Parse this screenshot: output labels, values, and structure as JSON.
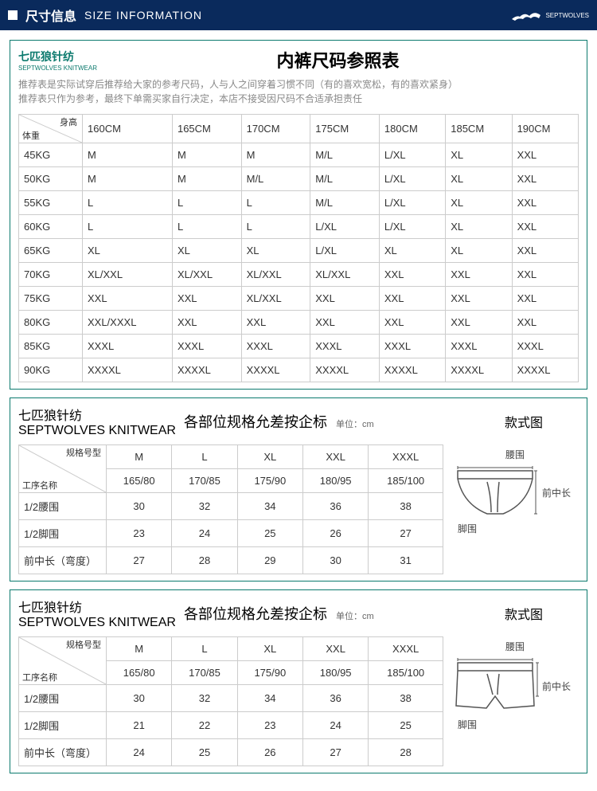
{
  "header": {
    "title_cn": "尺寸信息",
    "title_en": "SIZE  INFORMATION",
    "logo_text": "SEPTWOLVES"
  },
  "brand": {
    "cn": "七匹狼针纺",
    "en": "SEPTWOLVES KNITWEAR"
  },
  "main": {
    "title": "内裤尺码参照表",
    "desc1": "推荐表是实际试穿后推荐给大家的参考尺码，人与人之间穿着习惯不同（有的喜欢宽松，有的喜欢紧身）",
    "desc2": "推荐表只作为参考，最终下单需买家自行决定，本店不接受因尺码不合适承担责任",
    "corner_top": "身高",
    "corner_bot": "体重",
    "heights": [
      "160CM",
      "165CM",
      "170CM",
      "175CM",
      "180CM",
      "185CM",
      "190CM"
    ],
    "rows": [
      {
        "w": "45KG",
        "v": [
          "M",
          "M",
          "M",
          "M/L",
          "L/XL",
          "XL",
          "XXL"
        ]
      },
      {
        "w": "50KG",
        "v": [
          "M",
          "M",
          "M/L",
          "M/L",
          "L/XL",
          "XL",
          "XXL"
        ]
      },
      {
        "w": "55KG",
        "v": [
          "L",
          "L",
          "L",
          "M/L",
          "L/XL",
          "XL",
          "XXL"
        ]
      },
      {
        "w": "60KG",
        "v": [
          "L",
          "L",
          "L",
          "L/XL",
          "L/XL",
          "XL",
          "XXL"
        ]
      },
      {
        "w": "65KG",
        "v": [
          "XL",
          "XL",
          "XL",
          "L/XL",
          "XL",
          "XL",
          "XXL"
        ]
      },
      {
        "w": "70KG",
        "v": [
          "XL/XXL",
          "XL/XXL",
          "XL/XXL",
          "XL/XXL",
          "XXL",
          "XXL",
          "XXL"
        ]
      },
      {
        "w": "75KG",
        "v": [
          "XXL",
          "XXL",
          "XL/XXL",
          "XXL",
          "XXL",
          "XXL",
          "XXL"
        ]
      },
      {
        "w": "80KG",
        "v": [
          "XXL/XXXL",
          "XXL",
          "XXL",
          "XXL",
          "XXL",
          "XXL",
          "XXL"
        ]
      },
      {
        "w": "85KG",
        "v": [
          "XXXL",
          "XXXL",
          "XXXL",
          "XXXL",
          "XXXL",
          "XXXL",
          "XXXL"
        ]
      },
      {
        "w": "90KG",
        "v": [
          "XXXXL",
          "XXXXL",
          "XXXXL",
          "XXXXL",
          "XXXXL",
          "XXXXL",
          "XXXXL"
        ]
      }
    ]
  },
  "sub": {
    "title": "各部位规格允差按企标",
    "unit": "单位：cm",
    "style_label": "款式图",
    "corner_top": "规格号型",
    "corner_bot": "工序名称",
    "sizes": [
      "M",
      "L",
      "XL",
      "XXL",
      "XXXL"
    ],
    "size_specs": [
      "165/80",
      "170/85",
      "175/90",
      "180/95",
      "185/100"
    ],
    "diagram_waist": "腰围",
    "diagram_front": "前中长",
    "diagram_foot": "脚围"
  },
  "t1": {
    "rows": [
      {
        "n": "1/2腰围",
        "v": [
          "30",
          "32",
          "34",
          "36",
          "38"
        ]
      },
      {
        "n": "1/2脚围",
        "v": [
          "23",
          "24",
          "25",
          "26",
          "27"
        ]
      },
      {
        "n": "前中长（弯度）",
        "v": [
          "27",
          "28",
          "29",
          "30",
          "31"
        ]
      }
    ]
  },
  "t2": {
    "rows": [
      {
        "n": "1/2腰围",
        "v": [
          "30",
          "32",
          "34",
          "36",
          "38"
        ]
      },
      {
        "n": "1/2脚围",
        "v": [
          "21",
          "22",
          "23",
          "24",
          "25"
        ]
      },
      {
        "n": "前中长（弯度）",
        "v": [
          "24",
          "25",
          "26",
          "27",
          "28"
        ]
      }
    ]
  }
}
